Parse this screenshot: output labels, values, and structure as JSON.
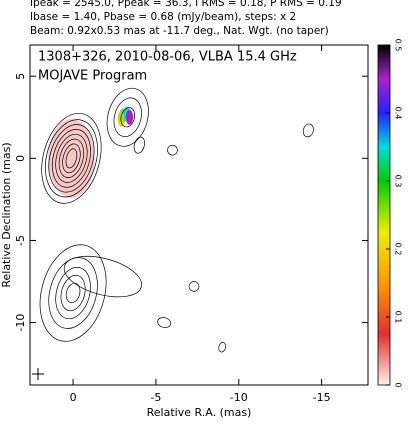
{
  "chart_data": {
    "type": "contour",
    "header": [
      "Ipeak = 2545.0, Ppeak = 36.3, I RMS = 0.18, P RMS = 0.19",
      "Ibase = 1.40, Pbase = 0.68 (mJy/beam), steps: x 2",
      "Beam: 0.92x0.53 mas at -11.7 deg., Nat. Wgt. (no taper)"
    ],
    "title": "1308+326, 2010-08-06, VLBA 15.4 GHz",
    "subtitle": "MOJAVE Program",
    "xlabel": "Relative R.A. (mas)",
    "ylabel": "Relative Declination (mas)",
    "xlim": [
      2.6,
      -17.8
    ],
    "ylim": [
      -13.8,
      6.9
    ],
    "xticks": [
      0,
      -5,
      -10,
      -15
    ],
    "yticks": [
      5,
      0,
      -5,
      -10
    ],
    "zlim": [
      0,
      0.5
    ],
    "zticks": [
      0,
      0.1,
      0.2,
      0.3,
      0.4,
      0.5
    ],
    "contours": [
      {
        "x": 0.1,
        "y": 0,
        "rx": [
          0.3,
          0.5,
          0.7,
          0.9,
          1.1,
          1.3,
          1.5,
          1.7
        ],
        "ry": [
          0.6,
          0.9,
          1.2,
          1.5,
          1.8,
          2.1,
          2.4,
          2.8
        ]
      },
      {
        "x": -3.3,
        "y": 2.5,
        "rx": [
          0.4,
          0.8,
          1.2
        ],
        "ry": [
          0.6,
          1.2,
          1.8
        ]
      },
      {
        "x": 0,
        "y": -8.2,
        "rx": [
          0.4,
          0.7,
          1.0,
          1.4,
          1.9
        ],
        "ry": [
          0.6,
          1.1,
          1.6,
          2.2,
          3.0
        ]
      },
      {
        "x": -1.8,
        "y": -7.2,
        "rx": [
          2.4
        ],
        "ry": [
          1.1
        ]
      },
      {
        "x": -14.2,
        "y": 1.7,
        "rx": [
          0.3
        ],
        "ry": [
          0.4
        ]
      },
      {
        "x": -5.5,
        "y": -10,
        "rx": [
          0.4
        ],
        "ry": [
          0.3
        ]
      },
      {
        "x": -9,
        "y": -11.5,
        "rx": [
          0.2
        ],
        "ry": [
          0.3
        ]
      },
      {
        "x": -4,
        "y": 0.8,
        "rx": [
          0.3
        ],
        "ry": [
          0.5
        ]
      },
      {
        "x": -6,
        "y": 0.5,
        "rx": [
          0.3
        ],
        "ry": [
          0.3
        ]
      },
      {
        "x": -7.3,
        "y": -7.8,
        "rx": [
          0.3
        ],
        "ry": [
          0.3
        ]
      }
    ],
    "polarization": [
      {
        "x": 0.1,
        "y": 0,
        "value": 0.03
      },
      {
        "x": -2.9,
        "y": 2.4,
        "value": 0.2
      },
      {
        "x": -3.0,
        "y": 2.6,
        "value": 0.25
      },
      {
        "x": -3.25,
        "y": 2.7,
        "value": 0.35
      },
      {
        "x": -3.4,
        "y": 2.5,
        "value": 0.45
      }
    ]
  }
}
